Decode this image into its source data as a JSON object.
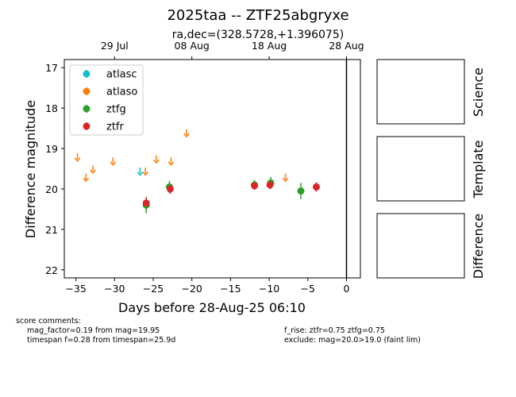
{
  "chart_data": {
    "type": "scatter",
    "title": "2025taa -- ZTF25abgryxe",
    "subtitle": "ra,dec=(328.5728,+1.396075)",
    "xlabel": "Days before 28-Aug-25 06:10",
    "ylabel": "Difference magnitude",
    "xlim": [
      -36.5,
      1.8
    ],
    "ylim": [
      22.2,
      16.8
    ],
    "y_inverted": true,
    "x_ticks": [
      -35,
      -30,
      -25,
      -20,
      -15,
      -10,
      -5,
      0
    ],
    "x_tick_labels": [
      "−35",
      "−30",
      "−25",
      "−20",
      "−15",
      "−10",
      "−5",
      "0"
    ],
    "y_ticks": [
      17,
      18,
      19,
      20,
      21,
      22
    ],
    "y_tick_labels": [
      "17",
      "18",
      "19",
      "20",
      "21",
      "22"
    ],
    "top_axis": {
      "ticks": [
        -30,
        -20,
        -10,
        0
      ],
      "labels": [
        "29 Jul",
        "08 Aug",
        "18 Aug",
        "28 Aug"
      ]
    },
    "reference_line_x": 0,
    "legend_position": "top-left",
    "series": [
      {
        "name": "atlasc",
        "color": "#17becf",
        "kind": "upper_limit",
        "points": [
          {
            "x": -26.7,
            "y": 19.55
          }
        ]
      },
      {
        "name": "atlaso",
        "color": "#ff7f0e",
        "kind": "upper_limit",
        "points": [
          {
            "x": -34.8,
            "y": 19.2
          },
          {
            "x": -33.7,
            "y": 19.7
          },
          {
            "x": -32.8,
            "y": 19.5
          },
          {
            "x": -30.2,
            "y": 19.3
          },
          {
            "x": -26.0,
            "y": 19.55
          },
          {
            "x": -24.6,
            "y": 19.25
          },
          {
            "x": -22.7,
            "y": 19.3
          },
          {
            "x": -20.7,
            "y": 18.6
          },
          {
            "x": -7.9,
            "y": 19.7
          }
        ]
      },
      {
        "name": "ztfg",
        "color": "#2ca02c",
        "kind": "detection",
        "points": [
          {
            "x": -25.9,
            "y": 20.4,
            "err": 0.2
          },
          {
            "x": -22.9,
            "y": 19.95,
            "err": 0.15
          },
          {
            "x": -11.9,
            "y": 19.9,
            "err": 0.12
          },
          {
            "x": -9.8,
            "y": 19.85,
            "err": 0.15
          },
          {
            "x": -5.9,
            "y": 20.05,
            "err": 0.2
          }
        ]
      },
      {
        "name": "ztfr",
        "color": "#d62728",
        "kind": "detection",
        "points": [
          {
            "x": -25.9,
            "y": 20.35,
            "err": 0.15
          },
          {
            "x": -22.8,
            "y": 20.0,
            "err": 0.12
          },
          {
            "x": -11.9,
            "y": 19.92,
            "err": 0.1
          },
          {
            "x": -9.9,
            "y": 19.9,
            "err": 0.1
          },
          {
            "x": -3.9,
            "y": 19.95,
            "err": 0.12
          }
        ]
      }
    ],
    "side_panels": [
      "Science",
      "Template",
      "Difference"
    ]
  },
  "comments": {
    "header": "score comments:",
    "left_1": "mag_factor=0.19 from mag=19.95",
    "left_2": "timespan f=0.28 from timespan=25.9d",
    "right_1": "f_rise: ztfr=0.75 ztfg=0.75",
    "right_2": "exclude: mag=20.0>19.0 (faint lim)"
  }
}
